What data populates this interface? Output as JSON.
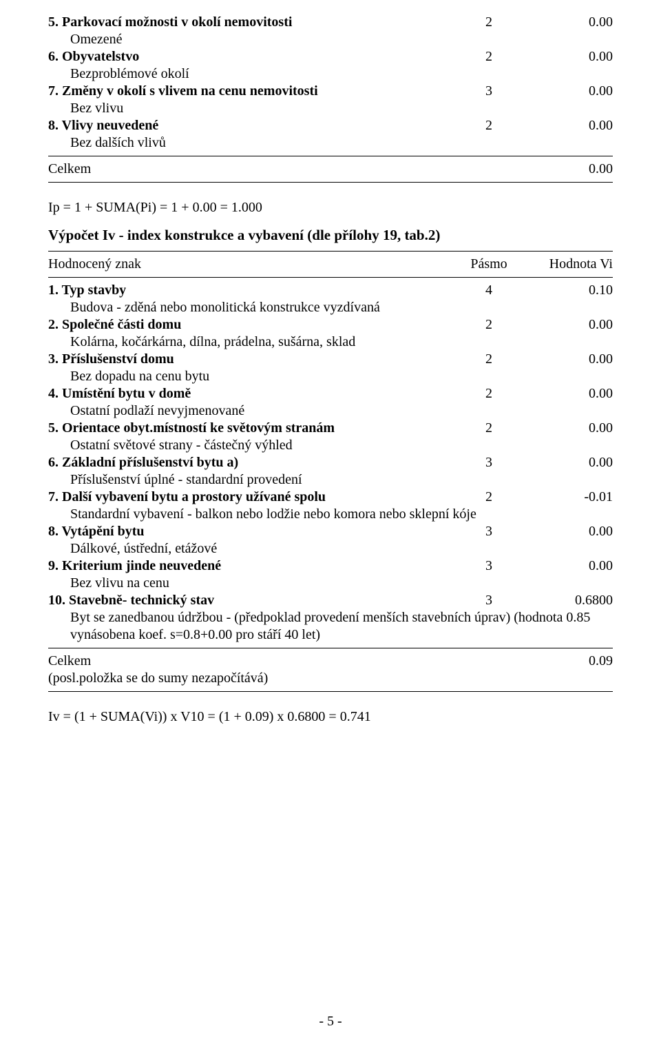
{
  "ip_section": {
    "items": [
      {
        "num": "5.",
        "title": "Parkovací možnosti v okolí nemovitosti",
        "pasmo": "2",
        "value": "0.00",
        "sub": "Omezené"
      },
      {
        "num": "6.",
        "title": "Obyvatelstvo",
        "pasmo": "2",
        "value": "0.00",
        "sub": "Bezproblémové okolí"
      },
      {
        "num": "7.",
        "title": "Změny v okolí s vlivem na cenu nemovitosti",
        "pasmo": "3",
        "value": "0.00",
        "sub": "Bez vlivu"
      },
      {
        "num": "8.",
        "title": "Vlivy neuvedené",
        "pasmo": "2",
        "value": "0.00",
        "sub": "Bez dalších vlivů"
      }
    ],
    "total_label": "Celkem",
    "total_value": "0.00",
    "formula": "Ip = 1 + SUMA(Pi) = 1 + 0.00 = 1.000"
  },
  "iv_heading": "Výpočet Iv - index konstrukce a vybavení (dle přílohy 19, tab.2)",
  "iv_header": {
    "label": "Hodnocený znak",
    "pasmo": "Pásmo",
    "value": "Hodnota Vi"
  },
  "iv_items": [
    {
      "num": "1.",
      "title": "Typ stavby",
      "pasmo": "4",
      "value": "0.10",
      "sub": "Budova - zděná nebo monolitická konstrukce vyzdívaná"
    },
    {
      "num": "2.",
      "title": "Společné části domu",
      "pasmo": "2",
      "value": "0.00",
      "sub": "Kolárna, kočárkárna, dílna, prádelna, sušárna, sklad"
    },
    {
      "num": "3.",
      "title": "Příslušenství domu",
      "pasmo": "2",
      "value": "0.00",
      "sub": "Bez dopadu na cenu bytu"
    },
    {
      "num": "4.",
      "title": "Umístění bytu v domě",
      "pasmo": "2",
      "value": "0.00",
      "sub": "Ostatní podlaží nevyjmenované"
    },
    {
      "num": "5.",
      "title": "Orientace obyt.místností ke světovým stranám",
      "pasmo": "2",
      "value": "0.00",
      "sub": "Ostatní světové strany - částečný výhled"
    },
    {
      "num": "6.",
      "title": "Základní příslušenství bytu a)",
      "pasmo": "3",
      "value": "0.00",
      "sub": "Příslušenství úplné - standardní provedení"
    },
    {
      "num": "7.",
      "title": "Další vybavení bytu a prostory užívané spolu",
      "pasmo": "2",
      "value": "-0.01",
      "sub": "Standardní vybavení - balkon nebo lodžie nebo komora nebo sklepní kóje"
    },
    {
      "num": "8.",
      "title": "Vytápění bytu",
      "pasmo": "3",
      "value": "0.00",
      "sub": "Dálkové, ústřední, etážové"
    },
    {
      "num": "9.",
      "title": "Kriterium jinde neuvedené",
      "pasmo": "3",
      "value": "0.00",
      "sub": "Bez vlivu na cenu"
    },
    {
      "num": "10.",
      "title": "Stavebně- technický stav",
      "pasmo": "3",
      "value": "0.6800",
      "sub": "Byt se zanedbanou údržbou - (předpoklad provedení menších stavebních úprav) (hodnota 0.85 vynásobena koef. s=0.8+0.00 pro stáří 40 let)"
    }
  ],
  "iv_total": {
    "label": "Celkem",
    "value": "0.09",
    "note": "(posl.položka se do sumy nezapočítává)"
  },
  "iv_formula": "Iv = (1 + SUMA(Vi)) x V10 = (1 + 0.09) x 0.6800 = 0.741",
  "page_number": "- 5 -"
}
